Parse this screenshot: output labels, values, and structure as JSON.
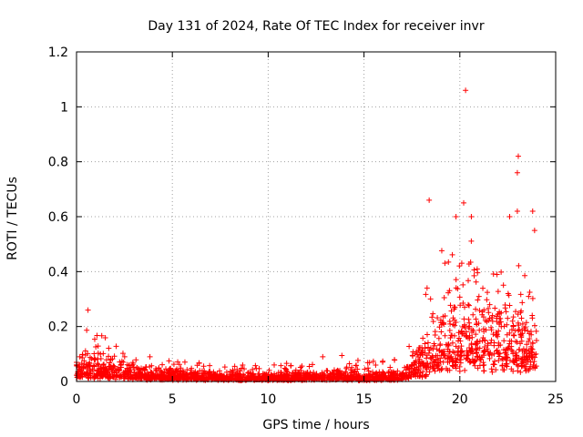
{
  "chart_data": {
    "type": "scatter",
    "title": "Day 131 of 2024, Rate Of TEC Index for receiver invr",
    "xlabel": "GPS time / hours",
    "ylabel": "ROTI / TECUs",
    "xlim": [
      0,
      25
    ],
    "ylim": [
      0,
      1.2
    ],
    "xticks": [
      0,
      5,
      10,
      15,
      20,
      25
    ],
    "yticks": [
      0,
      0.2,
      0.4,
      0.6,
      0.8,
      1,
      1.2
    ],
    "xtick_labels": [
      "0",
      "5",
      "10",
      "15",
      "20",
      "25"
    ],
    "ytick_labels": [
      "0",
      "0.2",
      "0.4",
      "0.6",
      "0.8",
      "1",
      "1.2"
    ],
    "grid": true,
    "marker": "+",
    "series_color": "#ff0000",
    "data_x_range": [
      0,
      24
    ],
    "envelope": [
      {
        "t": 0.0,
        "mean": 0.05,
        "max": 0.16
      },
      {
        "t": 0.7,
        "mean": 0.06,
        "max": 0.2
      },
      {
        "t": 1.5,
        "mean": 0.05,
        "max": 0.17
      },
      {
        "t": 2.5,
        "mean": 0.04,
        "max": 0.1
      },
      {
        "t": 4.0,
        "mean": 0.03,
        "max": 0.09
      },
      {
        "t": 6.0,
        "mean": 0.025,
        "max": 0.07
      },
      {
        "t": 8.0,
        "mean": 0.02,
        "max": 0.06
      },
      {
        "t": 10.0,
        "mean": 0.02,
        "max": 0.07
      },
      {
        "t": 12.0,
        "mean": 0.02,
        "max": 0.07
      },
      {
        "t": 13.5,
        "mean": 0.025,
        "max": 0.11
      },
      {
        "t": 15.0,
        "mean": 0.02,
        "max": 0.07
      },
      {
        "t": 17.0,
        "mean": 0.025,
        "max": 0.09
      },
      {
        "t": 18.0,
        "mean": 0.09,
        "max": 0.3
      },
      {
        "t": 18.8,
        "mean": 0.16,
        "max": 0.48
      },
      {
        "t": 19.5,
        "mean": 0.2,
        "max": 0.5
      },
      {
        "t": 20.3,
        "mean": 0.22,
        "max": 0.55
      },
      {
        "t": 21.0,
        "mean": 0.25,
        "max": 0.52
      },
      {
        "t": 22.0,
        "mean": 0.2,
        "max": 0.48
      },
      {
        "t": 23.0,
        "mean": 0.17,
        "max": 0.45
      },
      {
        "t": 24.0,
        "mean": 0.16,
        "max": 0.4
      }
    ],
    "notable_points": [
      {
        "x": 0.6,
        "y": 0.26
      },
      {
        "x": 18.4,
        "y": 0.66
      },
      {
        "x": 19.8,
        "y": 0.6
      },
      {
        "x": 20.2,
        "y": 0.65
      },
      {
        "x": 20.3,
        "y": 1.06
      },
      {
        "x": 20.6,
        "y": 0.6
      },
      {
        "x": 22.6,
        "y": 0.6
      },
      {
        "x": 23.0,
        "y": 0.62
      },
      {
        "x": 23.0,
        "y": 0.76
      },
      {
        "x": 23.05,
        "y": 0.82
      },
      {
        "x": 23.8,
        "y": 0.62
      },
      {
        "x": 23.9,
        "y": 0.55
      }
    ]
  }
}
